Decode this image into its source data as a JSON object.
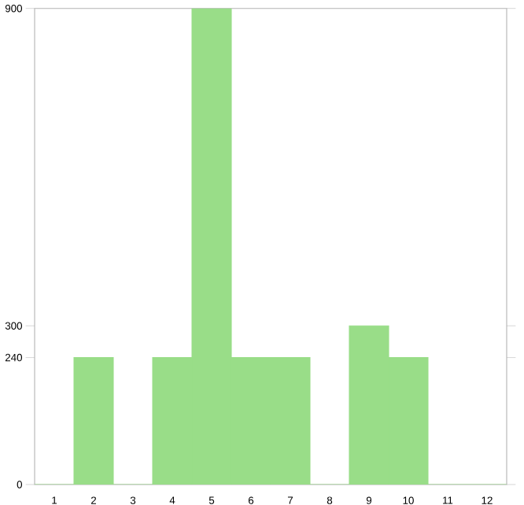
{
  "chart_data": {
    "type": "bar",
    "categories": [
      "1",
      "2",
      "3",
      "4",
      "5",
      "6",
      "7",
      "8",
      "9",
      "10",
      "11",
      "12"
    ],
    "values": [
      0,
      240,
      0,
      240,
      900,
      240,
      240,
      0,
      300,
      240,
      0,
      0
    ],
    "color": "#99dd88",
    "ylim": [
      0,
      900
    ],
    "yticks": [
      0,
      240,
      300,
      900
    ]
  }
}
